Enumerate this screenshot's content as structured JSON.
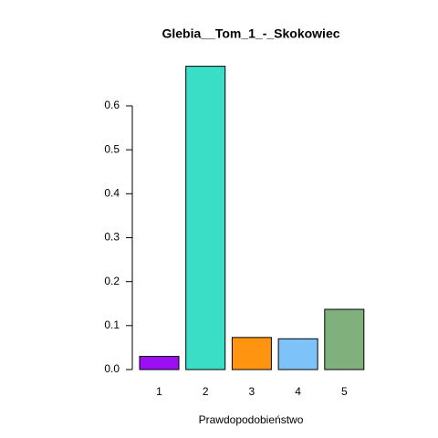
{
  "chart_data": {
    "type": "bar",
    "title": "Glebia__Tom_1_-_Skokowiec",
    "x_label": "Prawdopodobieństwo",
    "categories": [
      "1",
      "2",
      "3",
      "4",
      "5"
    ],
    "values": [
      0.03,
      0.69,
      0.073,
      0.07,
      0.137
    ],
    "colors": [
      "#9b0ff2",
      "#3adec6",
      "#ff9410",
      "#7dc3fa",
      "#80b07c"
    ],
    "ylim": [
      0,
      0.7
    ],
    "yticks": [
      {
        "value": 0,
        "label": "0.0"
      },
      0.1,
      0.2,
      0.3,
      0.4,
      0.5,
      0.6
    ],
    "grid": false
  }
}
